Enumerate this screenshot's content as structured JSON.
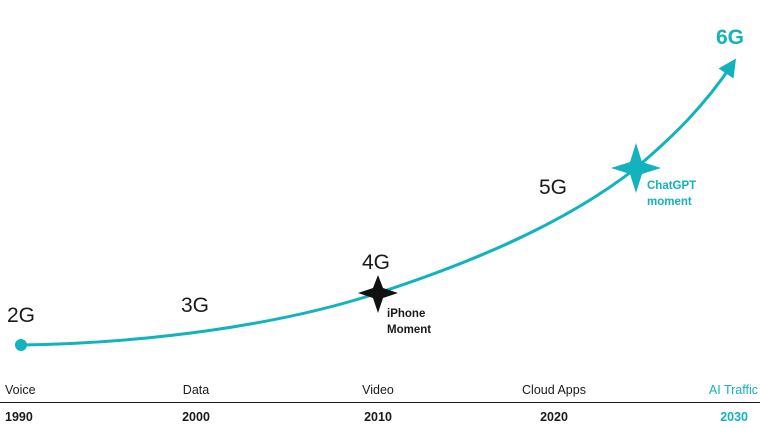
{
  "colors": {
    "accent": "#12b3bd",
    "ink": "#1a1a1a"
  },
  "generations": [
    "2G",
    "3G",
    "4G",
    "5G",
    "6G"
  ],
  "milestones": {
    "iphone": {
      "line1": "iPhone",
      "line2": "Moment",
      "icon": "four-point-star-icon"
    },
    "chatgpt": {
      "line1": "ChatGPT",
      "line2": "moment",
      "icon": "four-point-star-icon"
    }
  },
  "timeline": {
    "use_cases": [
      "Voice",
      "Data",
      "Video",
      "Cloud Apps",
      "AI Traffic"
    ],
    "years": [
      "1990",
      "2000",
      "2010",
      "2020",
      "2030"
    ]
  }
}
